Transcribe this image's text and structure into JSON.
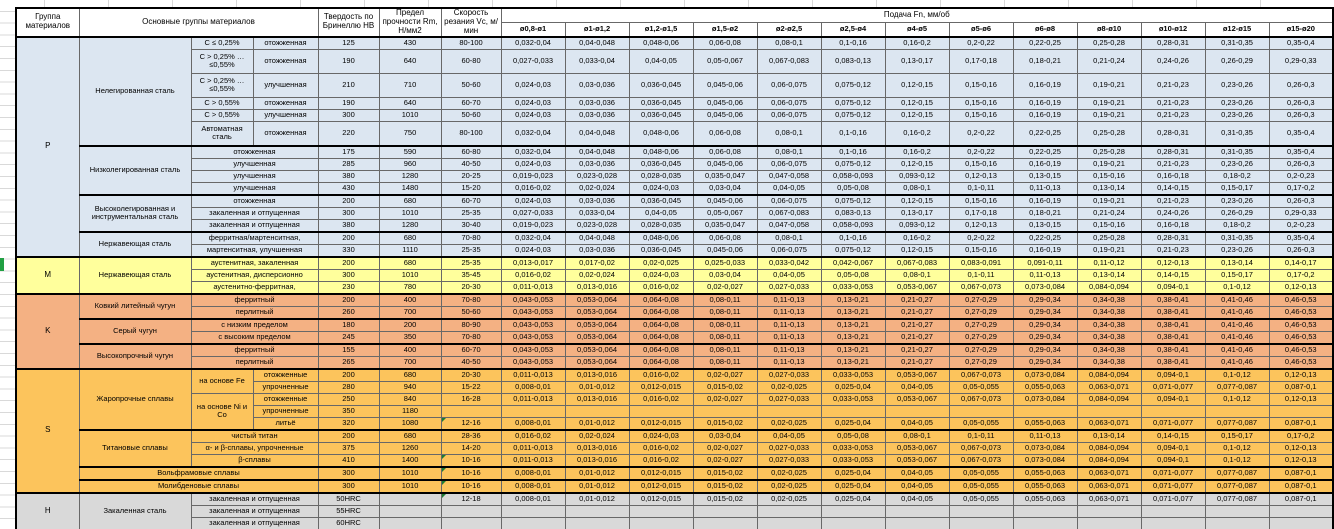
{
  "header": {
    "group": "Группа материалов",
    "main": "Основные группы материалов",
    "hardness": "Твердость по Бринеллю HB",
    "strength": "Предел прочности Rm, Н/мм2",
    "speed": "Скорость резания Vc, м/мин",
    "feed": "Подача Fn, мм/об",
    "diameters": [
      "ø0,8-ø1",
      "ø1-ø1,2",
      "ø1,2-ø1,5",
      "ø1,5-ø2",
      "ø2-ø2,5",
      "ø2,5-ø4",
      "ø4-ø5",
      "ø5-ø6",
      "ø6-ø8",
      "ø8-ø10",
      "ø10-ø12",
      "ø12-ø15",
      "ø15-ø20"
    ]
  },
  "colors": {
    "steel_p": "#dce6f1",
    "stainless_m": "#ffff9c",
    "castiron_k": "#f4b183",
    "superalloy_s": "#fcc45c",
    "hardened_h": "#d9d9d9",
    "flag_green": "#1e7c33",
    "selection_green": "#21a043"
  },
  "feed_patterns": {
    "A": [
      "0,032-0,04",
      "0,04-0,048",
      "0,048-0,06",
      "0,06-0,08",
      "0,08-0,1",
      "0,1-0,16",
      "0,16-0,2",
      "0,2-0,22",
      "0,22-0,25",
      "0,25-0,28",
      "0,28-0,31",
      "0,31-0,35",
      "0,35-0,4"
    ],
    "B": [
      "0,027-0,033",
      "0,033-0,04",
      "0,04-0,05",
      "0,05-0,067",
      "0,067-0,083",
      "0,083-0,13",
      "0,13-0,17",
      "0,17-0,18",
      "0,18-0,21",
      "0,21-0,24",
      "0,24-0,26",
      "0,26-0,29",
      "0,29-0,33"
    ],
    "C": [
      "0,024-0,03",
      "0,03-0,036",
      "0,036-0,045",
      "0,045-0,06",
      "0,06-0,075",
      "0,075-0,12",
      "0,12-0,15",
      "0,15-0,16",
      "0,16-0,19",
      "0,19-0,21",
      "0,21-0,23",
      "0,23-0,26",
      "0,26-0,3"
    ],
    "D": [
      "0,019-0,023",
      "0,023-0,028",
      "0,028-0,035",
      "0,035-0,047",
      "0,047-0,058",
      "0,058-0,093",
      "0,093-0,12",
      "0,12-0,13",
      "0,13-0,15",
      "0,15-0,16",
      "0,16-0,18",
      "0,18-0,2",
      "0,2-0,23"
    ],
    "E": [
      "0,016-0,02",
      "0,02-0,024",
      "0,024-0,03",
      "0,03-0,04",
      "0,04-0,05",
      "0,05-0,08",
      "0,08-0,1",
      "0,1-0,11",
      "0,11-0,13",
      "0,13-0,14",
      "0,14-0,15",
      "0,15-0,17",
      "0,17-0,2"
    ],
    "F": [
      "0,013-0,017",
      "0,017-0,02",
      "0,02-0,025",
      "0,025-0,033",
      "0,033-0,042",
      "0,042-0,067",
      "0,067-0,083",
      "0,083-0,091",
      "0,091-0,11",
      "0,11-0,12",
      "0,12-0,13",
      "0,13-0,14",
      "0,14-0,17"
    ],
    "G": [
      "0,011-0,013",
      "0,013-0,016",
      "0,016-0,02",
      "0,02-0,027",
      "0,027-0,033",
      "0,033-0,053",
      "0,053-0,067",
      "0,067-0,073",
      "0,073-0,084",
      "0,084-0,094",
      "0,094-0,1",
      "0,1-0,12",
      "0,12-0,13"
    ],
    "H": [
      "0,008-0,01",
      "0,01-0,012",
      "0,012-0,015",
      "0,015-0,02",
      "0,02-0,025",
      "0,025-0,04",
      "0,04-0,05",
      "0,05-0,055",
      "0,055-0,063",
      "0,063-0,071",
      "0,071-0,077",
      "0,077-0,087",
      "0,087-0,1"
    ],
    "K": [
      "0,043-0,053",
      "0,053-0,064",
      "0,064-0,08",
      "0,08-0,11",
      "0,11-0,13",
      "0,13-0,21",
      "0,21-0,27",
      "0,27-0,29",
      "0,29-0,34",
      "0,34-0,38",
      "0,38-0,41",
      "0,41-0,46",
      "0,46-0,53"
    ],
    "X": [
      "",
      "",
      "",
      "",
      "",
      "",
      "",
      "",
      "",
      "",
      "",
      "",
      ""
    ]
  },
  "groups": [
    {
      "letter": "P",
      "key": "p",
      "rows": [
        {
          "left": [
            {
              "t": "Нелегированная сталь",
              "rs": 6,
              "cls": "lab"
            },
            {
              "t": "C ≤ 0,25%"
            },
            {
              "t": "отожженная"
            }
          ],
          "hb": "125",
          "rm": "430",
          "vc": "80-100",
          "feed": "A"
        },
        {
          "left": [
            {
              "t": "C > 0,25% …\n≤0,55%"
            },
            {
              "t": "отожженная"
            }
          ],
          "hb": "190",
          "rm": "640",
          "vc": "60-80",
          "feed": "B",
          "tall": 1
        },
        {
          "left": [
            {
              "t": "C > 0,25% …\n≤0,55%"
            },
            {
              "t": "улучшенная"
            }
          ],
          "hb": "210",
          "rm": "710",
          "vc": "50-60",
          "feed": "C",
          "tall": 1
        },
        {
          "left": [
            {
              "t": "C > 0,55%"
            },
            {
              "t": "отожженная"
            }
          ],
          "hb": "190",
          "rm": "640",
          "vc": "60-70",
          "feed": "C"
        },
        {
          "left": [
            {
              "t": "C > 0,55%"
            },
            {
              "t": "улучшенная"
            }
          ],
          "hb": "300",
          "rm": "1010",
          "vc": "50-60",
          "feed": "C"
        },
        {
          "left": [
            {
              "t": "Автоматная\nсталь"
            },
            {
              "t": "отожженная"
            }
          ],
          "hb": "220",
          "rm": "750",
          "vc": "80-100",
          "feed": "A",
          "tall": 1
        },
        {
          "left": [
            {
              "t": "Низколегированная сталь",
              "rs": 4,
              "cls": "lab"
            },
            {
              "t": "отожженная",
              "cs": 2
            }
          ],
          "hb": "175",
          "rm": "590",
          "vc": "60-80",
          "feed": "A",
          "block": 1
        },
        {
          "left": [
            {
              "t": "улучшенная",
              "cs": 2
            }
          ],
          "hb": "285",
          "rm": "960",
          "vc": "40-50",
          "feed": "C"
        },
        {
          "left": [
            {
              "t": "улучшенная",
              "cs": 2
            }
          ],
          "hb": "380",
          "rm": "1280",
          "vc": "20-25",
          "feed": "D"
        },
        {
          "left": [
            {
              "t": "улучшенная",
              "cs": 2
            }
          ],
          "hb": "430",
          "rm": "1480",
          "vc": "15-20",
          "feed": "E"
        },
        {
          "left": [
            {
              "t": "Высоколегированная и инструментальная сталь",
              "rs": 3,
              "cls": "lab"
            },
            {
              "t": "отожженная",
              "cs": 2
            }
          ],
          "hb": "200",
          "rm": "680",
          "vc": "60-70",
          "feed": "C",
          "block": 1
        },
        {
          "left": [
            {
              "t": "закаленная и отпущенная",
              "cs": 2
            }
          ],
          "hb": "300",
          "rm": "1010",
          "vc": "25-35",
          "feed": "B"
        },
        {
          "left": [
            {
              "t": "закаленная и отпущенная",
              "cs": 2
            }
          ],
          "hb": "380",
          "rm": "1280",
          "vc": "30-40",
          "feed": "D"
        },
        {
          "left": [
            {
              "t": "Нержавеющая сталь",
              "rs": 2,
              "cls": "lab"
            },
            {
              "t": "ферритная/мартенситная,",
              "cs": 2
            }
          ],
          "hb": "200",
          "rm": "680",
          "vc": "70-80",
          "feed": "A",
          "block": 1
        },
        {
          "left": [
            {
              "t": "мартенситная, улучшенная",
              "cs": 2
            }
          ],
          "hb": "330",
          "rm": "1110",
          "vc": "25-35",
          "feed": "C"
        }
      ]
    },
    {
      "letter": "M",
      "key": "m",
      "rows": [
        {
          "left": [
            {
              "t": "Нержавеющая сталь",
              "rs": 3,
              "cls": "lab"
            },
            {
              "t": "аустенитная, закаленная",
              "cs": 2
            }
          ],
          "hb": "200",
          "rm": "680",
          "vc": "25-35",
          "feed": "F"
        },
        {
          "left": [
            {
              "t": "аустенитная, дисперсионно",
              "cs": 2
            }
          ],
          "hb": "300",
          "rm": "1010",
          "vc": "35-45",
          "feed": "E"
        },
        {
          "left": [
            {
              "t": "аустенитно-ферритная,",
              "cs": 2
            }
          ],
          "hb": "230",
          "rm": "780",
          "vc": "20-30",
          "feed": "G"
        }
      ]
    },
    {
      "letter": "K",
      "key": "k",
      "rows": [
        {
          "left": [
            {
              "t": "Ковкий литейный чугун",
              "rs": 2,
              "cls": "lab"
            },
            {
              "t": "ферритный",
              "cs": 2
            }
          ],
          "hb": "200",
          "rm": "400",
          "vc": "70-80",
          "feed": "K"
        },
        {
          "left": [
            {
              "t": "перлитный",
              "cs": 2
            }
          ],
          "hb": "260",
          "rm": "700",
          "vc": "50-60",
          "feed": "K"
        },
        {
          "left": [
            {
              "t": "Серый чугун",
              "rs": 2,
              "cls": "lab"
            },
            {
              "t": "с низким пределом",
              "cs": 2
            }
          ],
          "hb": "180",
          "rm": "200",
          "vc": "80-90",
          "feed": "K",
          "block": 1
        },
        {
          "left": [
            {
              "t": "с высоким пределом",
              "cs": 2
            }
          ],
          "hb": "245",
          "rm": "350",
          "vc": "70-80",
          "feed": "K"
        },
        {
          "left": [
            {
              "t": "Высокопрочный чугун",
              "rs": 2,
              "cls": "lab"
            },
            {
              "t": "ферритный",
              "cs": 2
            }
          ],
          "hb": "155",
          "rm": "400",
          "vc": "60-70",
          "feed": "K",
          "block": 1
        },
        {
          "left": [
            {
              "t": "перлитный",
              "cs": 2
            }
          ],
          "hb": "265",
          "rm": "700",
          "vc": "40-50",
          "feed": "K"
        }
      ]
    },
    {
      "letter": "S",
      "key": "s",
      "rows": [
        {
          "left": [
            {
              "t": "Жаропрочные сплавы",
              "rs": 5,
              "cls": "lab"
            },
            {
              "t": "на основе Fe",
              "rs": 2
            },
            {
              "t": "отожженные"
            }
          ],
          "hb": "200",
          "rm": "680",
          "vc": "20-30",
          "feed": "G"
        },
        {
          "left": [
            {
              "t": "упрочненные"
            }
          ],
          "hb": "280",
          "rm": "940",
          "vc": "15-22",
          "feed": "H"
        },
        {
          "left": [
            {
              "t": "на основе Ni и\nCo",
              "rs": 3
            },
            {
              "t": "отожженные"
            }
          ],
          "hb": "250",
          "rm": "840",
          "vc": "16-28",
          "feed": "G"
        },
        {
          "left": [
            {
              "t": "упрочненные"
            }
          ],
          "hb": "350",
          "rm": "1180",
          "vc": "",
          "feed": "X"
        },
        {
          "left": [
            {
              "t": "литьё"
            }
          ],
          "hb": "320",
          "rm": "1080",
          "vc": "12-16",
          "feed": "H",
          "flag": 1
        },
        {
          "left": [
            {
              "t": "Титановые сплавы",
              "rs": 3,
              "cls": "lab"
            },
            {
              "t": "чистый титан",
              "cs": 2
            }
          ],
          "hb": "200",
          "rm": "680",
          "vc": "28-36",
          "feed": "E",
          "block": 1
        },
        {
          "left": [
            {
              "t": "α- и β-сплавы, упрочненные",
              "cs": 2
            }
          ],
          "hb": "375",
          "rm": "1260",
          "vc": "14-20",
          "feed": "G"
        },
        {
          "left": [
            {
              "t": "β-сплавы",
              "cs": 2
            }
          ],
          "hb": "410",
          "rm": "1400",
          "vc": "10-16",
          "feed": "G",
          "flag": 1
        },
        {
          "left": [
            {
              "t": "Вольфрамовые сплавы",
              "cs": 3
            }
          ],
          "hb": "300",
          "rm": "1010",
          "vc": "10-16",
          "feed": "H",
          "flag": 1,
          "block": 1
        },
        {
          "left": [
            {
              "t": "Молибденовые сплавы",
              "cs": 3
            }
          ],
          "hb": "300",
          "rm": "1010",
          "vc": "10-16",
          "feed": "H",
          "flag": 1,
          "block": 1
        }
      ]
    },
    {
      "letter": "H",
      "key": "h",
      "rows": [
        {
          "left": [
            {
              "t": "Закаленная сталь",
              "rs": 3,
              "cls": "lab"
            },
            {
              "t": "закаленная и отпущенная",
              "cs": 2
            }
          ],
          "hb": "50HRC",
          "rm": "",
          "vc": "12-18",
          "feed": "H",
          "flag": 1
        },
        {
          "left": [
            {
              "t": "закаленная и отпущенная",
              "cs": 2
            }
          ],
          "hb": "55HRC",
          "rm": "",
          "vc": "",
          "feed": "X"
        },
        {
          "left": [
            {
              "t": "закаленная и отпущенная",
              "cs": 2
            }
          ],
          "hb": "60HRC",
          "rm": "",
          "vc": "",
          "feed": "X"
        }
      ]
    }
  ]
}
